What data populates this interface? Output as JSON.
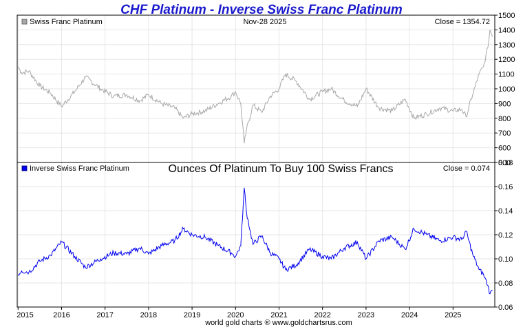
{
  "chart_data": [
    {
      "type": "line",
      "title": "CHF Platinum - Inverse Swiss Franc Platinum",
      "legend": "Swiss Franc Platinum",
      "date_label": "Nov-28  2025",
      "close_label": "Close = 1354.72",
      "series_color": "#a8a8a8",
      "ylim": [
        500,
        1500
      ],
      "yticks": [
        "1500",
        "1400",
        "1300",
        "1200",
        "1100",
        "1000",
        "900",
        "800",
        "700",
        "600",
        "500"
      ],
      "x": [
        2015.0,
        2015.08,
        2015.25,
        2015.5,
        2015.75,
        2016.0,
        2016.3,
        2016.55,
        2016.9,
        2017.2,
        2017.5,
        2017.8,
        2018.0,
        2018.3,
        2018.6,
        2018.8,
        2019.0,
        2019.3,
        2019.6,
        2019.9,
        2020.0,
        2020.12,
        2020.2,
        2020.25,
        2020.4,
        2020.6,
        2020.8,
        2021.0,
        2021.15,
        2021.4,
        2021.7,
        2022.0,
        2022.2,
        2022.5,
        2022.8,
        2023.0,
        2023.3,
        2023.6,
        2023.9,
        2024.1,
        2024.4,
        2024.7,
        2025.0,
        2025.2,
        2025.3,
        2025.45,
        2025.6,
        2025.7,
        2025.8,
        2025.85,
        2025.91
      ],
      "values": [
        1150,
        1110,
        1120,
        1020,
        970,
        880,
        980,
        1080,
        1000,
        950,
        960,
        920,
        960,
        900,
        870,
        800,
        830,
        850,
        900,
        950,
        980,
        900,
        630,
        720,
        890,
        840,
        950,
        1000,
        1100,
        1050,
        930,
        980,
        1000,
        920,
        880,
        1000,
        870,
        850,
        930,
        800,
        830,
        870,
        850,
        860,
        810,
        960,
        1100,
        1150,
        1280,
        1400,
        1354.72
      ]
    },
    {
      "type": "line",
      "legend": "Inverse Swiss Franc Platinum",
      "subtitle": "Ounces Of Platinum To Buy 100 Swiss Francs",
      "close_label": "Close = 0.074",
      "series_color": "#0000ee",
      "ylim": [
        0.06,
        0.18
      ],
      "yticks": [
        "0.18",
        "0.16",
        "0.14",
        "0.12",
        "0.10",
        "0.08",
        "0.06"
      ],
      "x": [
        2015.0,
        2015.08,
        2015.25,
        2015.5,
        2015.75,
        2016.0,
        2016.3,
        2016.55,
        2016.9,
        2017.2,
        2017.5,
        2017.8,
        2018.0,
        2018.3,
        2018.6,
        2018.8,
        2019.0,
        2019.3,
        2019.6,
        2019.9,
        2020.0,
        2020.12,
        2020.2,
        2020.25,
        2020.4,
        2020.6,
        2020.8,
        2021.0,
        2021.15,
        2021.4,
        2021.7,
        2022.0,
        2022.2,
        2022.5,
        2022.8,
        2023.0,
        2023.3,
        2023.6,
        2023.9,
        2024.1,
        2024.4,
        2024.7,
        2025.0,
        2025.2,
        2025.3,
        2025.45,
        2025.6,
        2025.7,
        2025.8,
        2025.85,
        2025.91
      ],
      "values": [
        0.087,
        0.09,
        0.089,
        0.098,
        0.103,
        0.114,
        0.102,
        0.093,
        0.1,
        0.105,
        0.104,
        0.109,
        0.104,
        0.111,
        0.115,
        0.125,
        0.12,
        0.118,
        0.111,
        0.105,
        0.102,
        0.111,
        0.159,
        0.139,
        0.112,
        0.119,
        0.105,
        0.1,
        0.091,
        0.095,
        0.108,
        0.102,
        0.1,
        0.109,
        0.114,
        0.1,
        0.115,
        0.118,
        0.108,
        0.125,
        0.12,
        0.115,
        0.118,
        0.116,
        0.123,
        0.104,
        0.091,
        0.087,
        0.078,
        0.071,
        0.074
      ]
    }
  ],
  "x_axis": {
    "xlim": [
      2014.98,
      2025.96
    ],
    "ticks": [
      {
        "v": 2015,
        "label": "2015"
      },
      {
        "v": 2016,
        "label": "2016"
      },
      {
        "v": 2017,
        "label": "2017"
      },
      {
        "v": 2018,
        "label": "2018"
      },
      {
        "v": 2019,
        "label": "2019"
      },
      {
        "v": 2020,
        "label": "2020"
      },
      {
        "v": 2021,
        "label": "2021"
      },
      {
        "v": 2022,
        "label": "2022"
      },
      {
        "v": 2023,
        "label": "2023"
      },
      {
        "v": 2024,
        "label": "2024"
      },
      {
        "v": 2025,
        "label": "2025"
      }
    ]
  },
  "colors": {
    "title": "#1a1acc",
    "grid": "#e6e6e6",
    "frame": "#000000"
  },
  "footer": "world gold charts ® www.goldchartsrus.com"
}
